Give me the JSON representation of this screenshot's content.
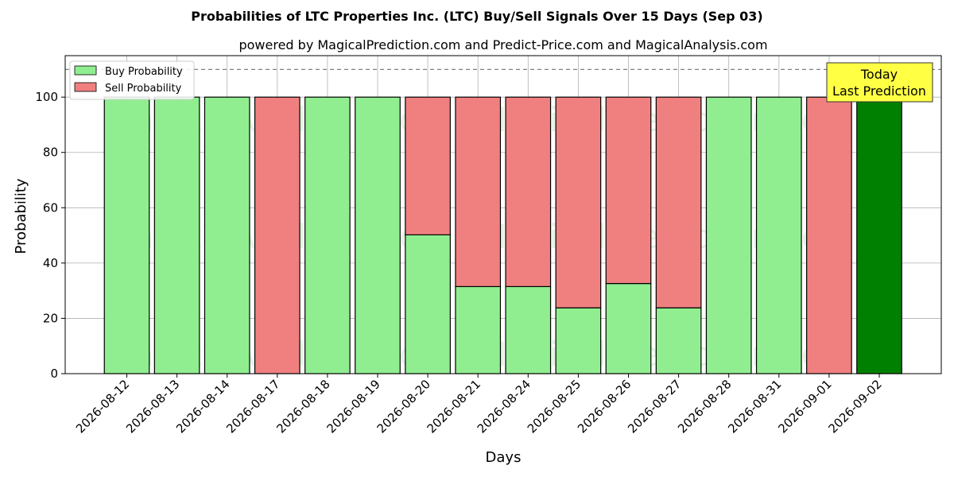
{
  "chart_data": {
    "type": "bar",
    "title": "Probabilities of LTC Properties Inc. (LTC) Buy/Sell Signals Over 15 Days (Sep 03)",
    "subtitle": "powered by MagicalPrediction.com and Predict-Price.com and MagicalAnalysis.com",
    "xlabel": "Days",
    "ylabel": "Probability",
    "ylim": [
      0,
      115
    ],
    "yticks": [
      0,
      20,
      40,
      60,
      80,
      100
    ],
    "grid": true,
    "legend_position": "top-left",
    "stacked": true,
    "categories": [
      "2026-08-12",
      "2026-08-13",
      "2026-08-14",
      "2026-08-17",
      "2026-08-18",
      "2026-08-19",
      "2026-08-20",
      "2026-08-21",
      "2026-08-24",
      "2026-08-25",
      "2026-08-26",
      "2026-08-27",
      "2026-08-28",
      "2026-08-31",
      "2026-09-01",
      "2026-09-02"
    ],
    "series": [
      {
        "name": "Buy Probability",
        "color": "#90ee90",
        "values": [
          100,
          100,
          100,
          0,
          100,
          100,
          50.2,
          31.5,
          31.5,
          23.8,
          32.6,
          23.8,
          100,
          100,
          0,
          100
        ]
      },
      {
        "name": "Sell Probability",
        "color": "#f08080",
        "values": [
          0,
          0,
          0,
          100,
          0,
          0,
          49.8,
          68.5,
          68.5,
          76.2,
          67.4,
          76.2,
          0,
          0,
          100,
          0
        ]
      }
    ],
    "highlight": {
      "index": 15,
      "color": "#008000"
    },
    "reference_line": {
      "y": 110,
      "style": "dashed",
      "color": "#808080"
    },
    "annotation": {
      "lines": [
        "Today",
        "Last Prediction"
      ],
      "background": "#ffff44"
    },
    "watermark": [
      "MagicalAnalysis.com",
      "MagicalPrediction.com"
    ]
  }
}
